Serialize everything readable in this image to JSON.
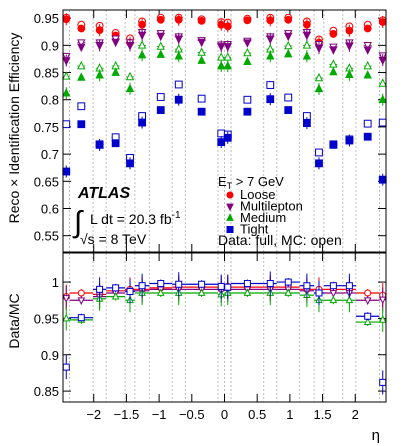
{
  "chart_data": {
    "type": "scatter",
    "top_panel": {
      "ylabel": "Reco × Identification Efficiency",
      "ylim": [
        0.52,
        0.965
      ],
      "yticks": [
        "0.55",
        "0.6",
        "0.65",
        "0.7",
        "0.75",
        "0.8",
        "0.85",
        "0.9",
        "0.95"
      ]
    },
    "bottom_panel": {
      "ylabel": "Data/MC",
      "ylim": [
        0.835,
        1.04
      ],
      "yticks": [
        "0.85",
        "0.9",
        "0.95",
        "1"
      ]
    },
    "x": {
      "xlabel": "η",
      "xlim": [
        -2.47,
        2.47
      ],
      "xticks": [
        "−2",
        "−1.5",
        "−1",
        "−0.5",
        "0",
        "0.5",
        "1",
        "1.5",
        "2"
      ]
    },
    "bin_edges": [
      -2.47,
      -2.37,
      -2.01,
      -1.81,
      -1.52,
      -1.37,
      -1.15,
      -0.8,
      -0.6,
      -0.1,
      0.0,
      0.1,
      0.6,
      0.8,
      1.15,
      1.37,
      1.52,
      1.81,
      2.01,
      2.37,
      2.47
    ],
    "series": [
      {
        "name": "Loose",
        "color": "#ff0000",
        "marker": "circle",
        "data": [
          0.948,
          0.931,
          0.928,
          0.918,
          0.905,
          0.938,
          0.947,
          0.947,
          0.945,
          0.938,
          0.935,
          0.946,
          0.946,
          0.947,
          0.938,
          0.905,
          0.921,
          0.927,
          0.931,
          0.943
        ],
        "mc": [
          0.951,
          0.938,
          0.936,
          0.923,
          0.913,
          0.944,
          0.951,
          0.951,
          0.948,
          0.943,
          0.942,
          0.949,
          0.951,
          0.951,
          0.944,
          0.911,
          0.927,
          0.935,
          0.938,
          0.946
        ],
        "ratio": [
          0.98,
          0.985,
          0.983,
          0.988,
          0.99,
          0.99,
          0.992,
          0.993,
          0.993,
          0.992,
          0.994,
          0.993,
          0.993,
          0.993,
          0.99,
          0.99,
          0.99,
          0.99,
          0.985,
          0.982
        ]
      },
      {
        "name": "Multilepton",
        "color": "#800080",
        "marker": "triangle-down",
        "data": [
          0.872,
          0.897,
          0.9,
          0.906,
          0.9,
          0.919,
          0.917,
          0.912,
          0.906,
          0.898,
          0.898,
          0.905,
          0.912,
          0.917,
          0.919,
          0.895,
          0.892,
          0.899,
          0.892,
          0.873
        ],
        "mc": [
          0.88,
          0.905,
          0.905,
          0.912,
          0.905,
          0.924,
          0.922,
          0.916,
          0.909,
          0.901,
          0.902,
          0.908,
          0.916,
          0.922,
          0.924,
          0.902,
          0.897,
          0.905,
          0.9,
          0.881
        ],
        "ratio": [
          0.978,
          0.975,
          0.98,
          0.985,
          0.988,
          0.988,
          0.99,
          0.99,
          0.99,
          0.988,
          0.989,
          0.99,
          0.99,
          0.99,
          0.988,
          0.985,
          0.985,
          0.985,
          0.975,
          0.976
        ]
      },
      {
        "name": "Medium",
        "color": "#00aa00",
        "marker": "triangle-up",
        "data": [
          0.812,
          0.841,
          0.845,
          0.85,
          0.82,
          0.882,
          0.883,
          0.88,
          0.872,
          0.862,
          0.862,
          0.87,
          0.88,
          0.884,
          0.88,
          0.82,
          0.851,
          0.846,
          0.845,
          0.8
        ],
        "mc": [
          0.843,
          0.862,
          0.858,
          0.862,
          0.842,
          0.9,
          0.898,
          0.893,
          0.887,
          0.878,
          0.878,
          0.886,
          0.893,
          0.899,
          0.9,
          0.84,
          0.865,
          0.858,
          0.862,
          0.83
        ],
        "ratio": [
          0.95,
          0.948,
          0.977,
          0.98,
          0.975,
          0.985,
          0.985,
          0.985,
          0.985,
          0.983,
          0.985,
          0.985,
          0.985,
          0.985,
          0.982,
          0.975,
          0.975,
          0.975,
          0.945,
          0.948
        ]
      },
      {
        "name": "Tight",
        "color": "#0000cc",
        "marker": "square",
        "data": [
          0.668,
          0.755,
          0.717,
          0.72,
          0.683,
          0.758,
          0.781,
          0.8,
          0.778,
          0.722,
          0.73,
          0.778,
          0.801,
          0.781,
          0.757,
          0.683,
          0.717,
          0.725,
          0.732,
          0.653
        ],
        "mc": [
          0.755,
          0.788,
          0.718,
          0.731,
          0.693,
          0.77,
          0.805,
          0.828,
          0.802,
          0.738,
          0.736,
          0.8,
          0.827,
          0.804,
          0.77,
          0.703,
          0.718,
          0.727,
          0.756,
          0.758
        ],
        "ratio": [
          0.883,
          0.951,
          0.99,
          0.992,
          0.987,
          0.995,
          0.998,
          0.997,
          0.997,
          0.994,
          0.993,
          0.998,
          0.998,
          1.0,
          0.995,
          0.985,
          0.995,
          0.995,
          0.953,
          0.862
        ]
      }
    ],
    "legend": {
      "header": "E",
      "header_sub": "T",
      "header_tail": " > 7 GeV",
      "entries": [
        "Loose",
        "Multilepton",
        "Medium",
        "Tight"
      ],
      "note": "Data: full, MC: open"
    },
    "annotations": {
      "experiment": "ATLAS",
      "lumi_prefix": "L dt = 20.3 fb",
      "lumi_sup": "-1",
      "energy": "√s = 8 TeV"
    }
  }
}
